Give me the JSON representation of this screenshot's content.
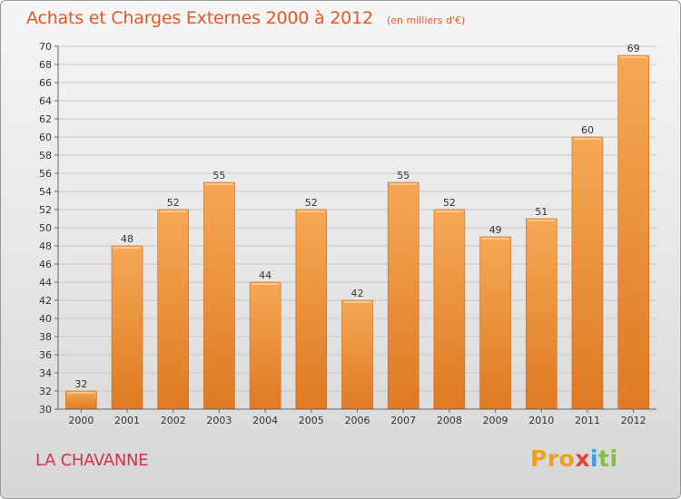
{
  "header": {
    "title": "Achats et Charges Externes 2000 à 2012",
    "unit": "(en milliers d'€)"
  },
  "footer": {
    "commune": "LA CHAVANNE",
    "logo_parts": [
      "Pro",
      "x",
      "i",
      "ti"
    ]
  },
  "colors": {
    "bar_top": "#f6a855",
    "bar_bottom": "#de7a22",
    "title": "#e05a28",
    "commune": "#d6304a",
    "grid": "#c8c8c8"
  },
  "chart_data": {
    "type": "bar",
    "title": "Achats et Charges Externes 2000 à 2012",
    "ylabel": "(en milliers d'€)",
    "categories": [
      "2000",
      "2001",
      "2002",
      "2003",
      "2004",
      "2005",
      "2006",
      "2007",
      "2008",
      "2009",
      "2010",
      "2011",
      "2012"
    ],
    "values": [
      32,
      48,
      52,
      55,
      44,
      52,
      42,
      55,
      52,
      49,
      51,
      60,
      69
    ],
    "ylim": [
      30,
      70
    ],
    "ytick_step": 2,
    "grid": true,
    "data_labels": true
  }
}
